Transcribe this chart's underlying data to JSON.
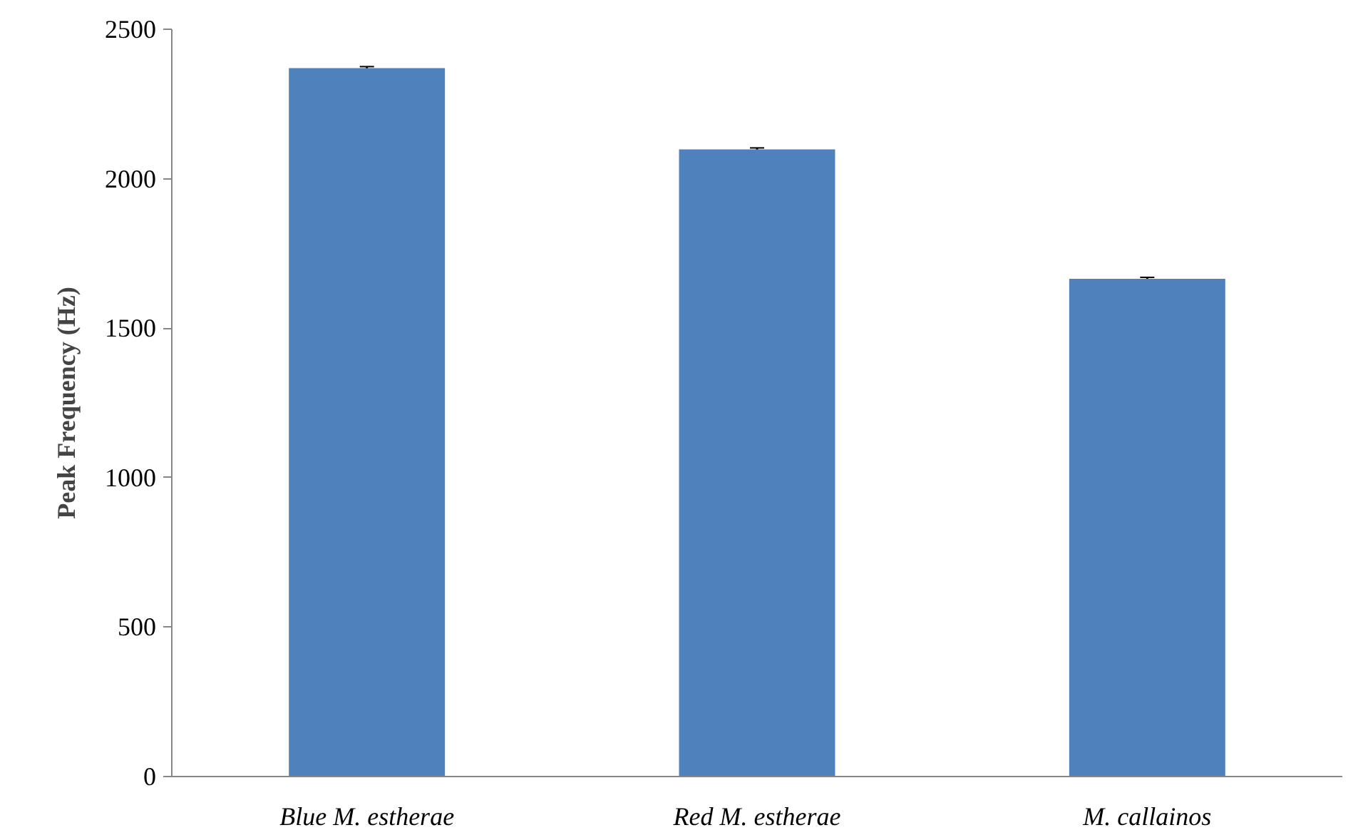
{
  "chart_data": {
    "type": "bar",
    "ylabel": "Peak Frequency (Hz)",
    "categories": [
      "Blue M. estherae",
      "Red M. estherae",
      "M. callainos"
    ],
    "values": [
      2370,
      2098,
      1665
    ],
    "errors": [
      5,
      5,
      5
    ],
    "color": "#4f81bd",
    "ylim": [
      0,
      2500
    ],
    "yticks": [
      0,
      500,
      1000,
      1500,
      2000,
      2500
    ],
    "grid": false
  }
}
